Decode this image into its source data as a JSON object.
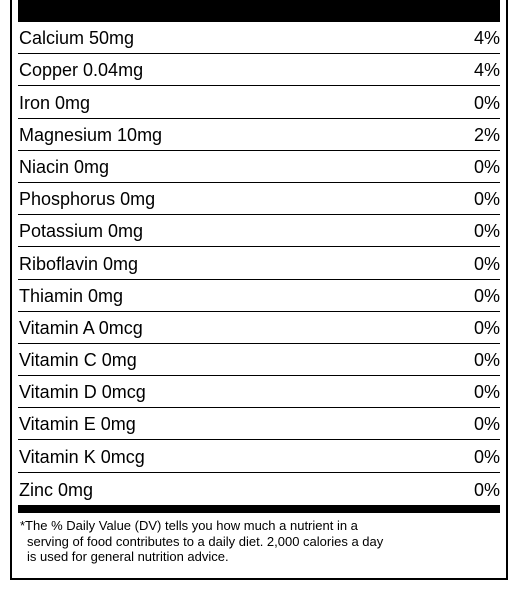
{
  "nutrients": [
    {
      "name": "Calcium 50mg",
      "dv": "4%"
    },
    {
      "name": "Copper 0.04mg",
      "dv": "4%"
    },
    {
      "name": "Iron 0mg",
      "dv": "0%"
    },
    {
      "name": "Magnesium 10mg",
      "dv": "2%"
    },
    {
      "name": "Niacin 0mg",
      "dv": "0%"
    },
    {
      "name": "Phosphorus 0mg",
      "dv": "0%"
    },
    {
      "name": "Potassium 0mg",
      "dv": "0%"
    },
    {
      "name": "Riboflavin 0mg",
      "dv": "0%"
    },
    {
      "name": "Thiamin 0mg",
      "dv": "0%"
    },
    {
      "name": "Vitamin A 0mcg",
      "dv": "0%"
    },
    {
      "name": "Vitamin C 0mg",
      "dv": "0%"
    },
    {
      "name": "Vitamin D 0mcg",
      "dv": "0%"
    },
    {
      "name": "Vitamin E 0mg",
      "dv": "0%"
    },
    {
      "name": "Vitamin K 0mcg",
      "dv": "0%"
    },
    {
      "name": "Zinc 0mg",
      "dv": "0%"
    }
  ],
  "footnote": {
    "line1": "*The % Daily Value (DV) tells you how much a nutrient in a",
    "line2": "serving of food contributes to a daily diet. 2,000 calories a day",
    "line3": "is used for general nutrition advice."
  }
}
